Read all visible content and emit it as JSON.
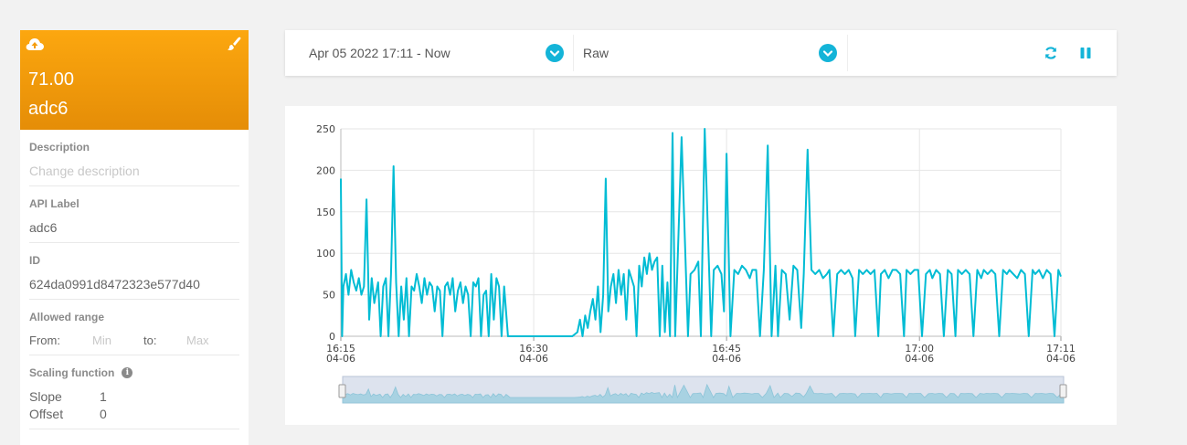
{
  "sensor": {
    "value": "71.00",
    "name": "adc6",
    "icons": {
      "upload": "cloud-upload-icon",
      "edit": "paint-brush-icon"
    }
  },
  "properties": {
    "description": {
      "label": "Description",
      "placeholder": "Change description"
    },
    "api_label": {
      "label": "API Label",
      "value": "adc6"
    },
    "id": {
      "label": "ID",
      "value": "624da0991d8472323e577d40"
    },
    "allowed_range": {
      "label": "Allowed range",
      "from_label": "From:",
      "from_placeholder": "Min",
      "to_label": "to:",
      "to_placeholder": "Max"
    },
    "scaling": {
      "label": "Scaling function",
      "slope_label": "Slope",
      "slope_value": "1",
      "offset_label": "Offset",
      "offset_value": "0"
    }
  },
  "toolbar": {
    "time_range": "Apr 05 2022 17:11 - Now",
    "mode": "Raw",
    "icons": {
      "refresh": "refresh-icon",
      "pause": "pause-icon"
    }
  },
  "colors": {
    "accent": "#14b4d8",
    "header": "#f59c0b",
    "series": "#00bcd4"
  },
  "chart_data": {
    "type": "line",
    "ylim": [
      0,
      250
    ],
    "y_ticks": [
      "0",
      "50",
      "100",
      "150",
      "200",
      "250"
    ],
    "x_ticks": [
      {
        "time": "16:15",
        "date": "04-06"
      },
      {
        "time": "16:30",
        "date": "04-06"
      },
      {
        "time": "16:45",
        "date": "04-06"
      },
      {
        "time": "17:00",
        "date": "04-06"
      },
      {
        "time": "17:11",
        "date": "04-06"
      }
    ],
    "x_range_minutes": [
      975,
      1031
    ],
    "grid": true,
    "navigator": true,
    "series": [
      {
        "x": [
          975.0,
          975.1,
          975.2,
          975.4,
          975.6,
          975.8,
          976.0,
          976.2,
          976.4,
          976.6,
          976.8,
          977.0,
          977.2,
          977.4,
          977.6,
          977.9,
          978.1,
          978.3,
          978.5,
          978.7,
          978.9,
          979.1,
          979.3,
          979.5,
          979.7,
          979.9,
          980.1,
          980.3,
          980.5,
          980.7,
          980.9,
          981.1,
          981.3,
          981.5,
          981.7,
          981.9,
          982.1,
          982.3,
          982.5,
          982.7,
          982.9,
          983.1,
          983.3,
          983.5,
          983.7,
          983.9,
          984.1,
          984.3,
          984.5,
          984.7,
          984.9,
          985.1,
          985.3,
          985.5,
          985.7,
          985.9,
          986.1,
          986.3,
          986.5,
          986.7,
          986.9,
          987.1,
          987.3,
          987.5,
          987.7,
          988.0,
          990.0,
          992.0,
          993.0,
          993.4,
          993.6,
          993.8,
          994.0,
          994.2,
          994.4,
          994.6,
          994.8,
          995.0,
          995.2,
          995.4,
          995.6,
          995.8,
          996.0,
          996.2,
          996.4,
          996.6,
          996.8,
          997.0,
          997.2,
          997.4,
          997.6,
          997.8,
          998.0,
          998.2,
          998.4,
          998.6,
          998.8,
          999.0,
          999.2,
          999.4,
          999.6,
          999.8,
          1000.0,
          1000.2,
          1000.4,
          1000.6,
          1000.8,
          1001.0,
          1001.2,
          1001.5,
          1002.0,
          1002.2,
          1002.5,
          1002.8,
          1003.0,
          1003.3,
          1003.8,
          1004.0,
          1004.3,
          1004.6,
          1004.8,
          1005.0,
          1005.3,
          1005.6,
          1005.9,
          1006.2,
          1006.5,
          1006.8,
          1007.0,
          1007.3,
          1007.6,
          1007.9,
          1008.2,
          1008.5,
          1008.8,
          1009.0,
          1009.3,
          1009.6,
          1009.9,
          1010.2,
          1010.5,
          1010.8,
          1011.0,
          1011.3,
          1011.6,
          1011.9,
          1012.2,
          1012.5,
          1012.8,
          1013.0,
          1013.3,
          1013.6,
          1013.9,
          1014.2,
          1014.5,
          1014.8,
          1015.0,
          1015.3,
          1015.6,
          1015.9,
          1016.2,
          1016.5,
          1016.8,
          1017.0,
          1017.3,
          1017.6,
          1017.9,
          1018.2,
          1018.5,
          1018.8,
          1019.0,
          1019.3,
          1019.6,
          1019.9,
          1020.2,
          1020.5,
          1020.8,
          1021.0,
          1021.3,
          1021.6,
          1021.9,
          1022.2,
          1022.5,
          1022.8,
          1023.0,
          1023.3,
          1023.6,
          1023.9,
          1024.2,
          1024.5,
          1024.8,
          1025.0,
          1025.3,
          1025.6,
          1025.9,
          1026.2,
          1026.5,
          1026.8,
          1027.0,
          1027.3,
          1027.6,
          1027.9,
          1028.2,
          1028.5,
          1028.8,
          1029.0,
          1029.3,
          1029.6,
          1029.9,
          1030.2,
          1030.5,
          1030.8,
          1031.0
        ],
        "y": [
          190,
          0,
          60,
          75,
          50,
          80,
          65,
          55,
          70,
          50,
          60,
          165,
          20,
          70,
          40,
          65,
          0,
          60,
          70,
          0,
          75,
          205,
          65,
          0,
          60,
          20,
          70,
          0,
          60,
          55,
          75,
          60,
          40,
          70,
          50,
          65,
          60,
          30,
          60,
          55,
          0,
          60,
          65,
          50,
          70,
          30,
          55,
          65,
          40,
          60,
          50,
          0,
          65,
          60,
          70,
          0,
          50,
          55,
          0,
          75,
          20,
          70,
          60,
          0,
          60,
          0,
          0,
          0,
          0,
          5,
          20,
          0,
          25,
          10,
          30,
          45,
          20,
          60,
          5,
          50,
          190,
          30,
          60,
          75,
          40,
          80,
          50,
          75,
          20,
          80,
          70,
          60,
          0,
          85,
          60,
          95,
          75,
          100,
          80,
          90,
          95,
          0,
          85,
          5,
          65,
          0,
          245,
          0,
          95,
          240,
          0,
          75,
          80,
          90,
          0,
          250,
          0,
          80,
          85,
          75,
          30,
          220,
          0,
          80,
          75,
          85,
          80,
          70,
          80,
          80,
          0,
          80,
          230,
          0,
          85,
          0,
          80,
          75,
          20,
          85,
          80,
          10,
          75,
          225,
          80,
          75,
          80,
          70,
          75,
          80,
          0,
          75,
          80,
          75,
          80,
          70,
          0,
          80,
          75,
          80,
          75,
          80,
          0,
          75,
          80,
          70,
          80,
          80,
          75,
          0,
          80,
          75,
          80,
          80,
          0,
          75,
          80,
          70,
          80,
          75,
          0,
          80,
          75,
          0,
          80,
          75,
          80,
          75,
          0,
          80,
          70,
          80,
          75,
          80,
          75,
          0,
          80,
          75,
          80,
          75,
          70,
          80,
          75,
          0,
          80,
          75,
          80,
          70,
          80,
          75,
          0,
          80,
          72
        ]
      }
    ]
  }
}
